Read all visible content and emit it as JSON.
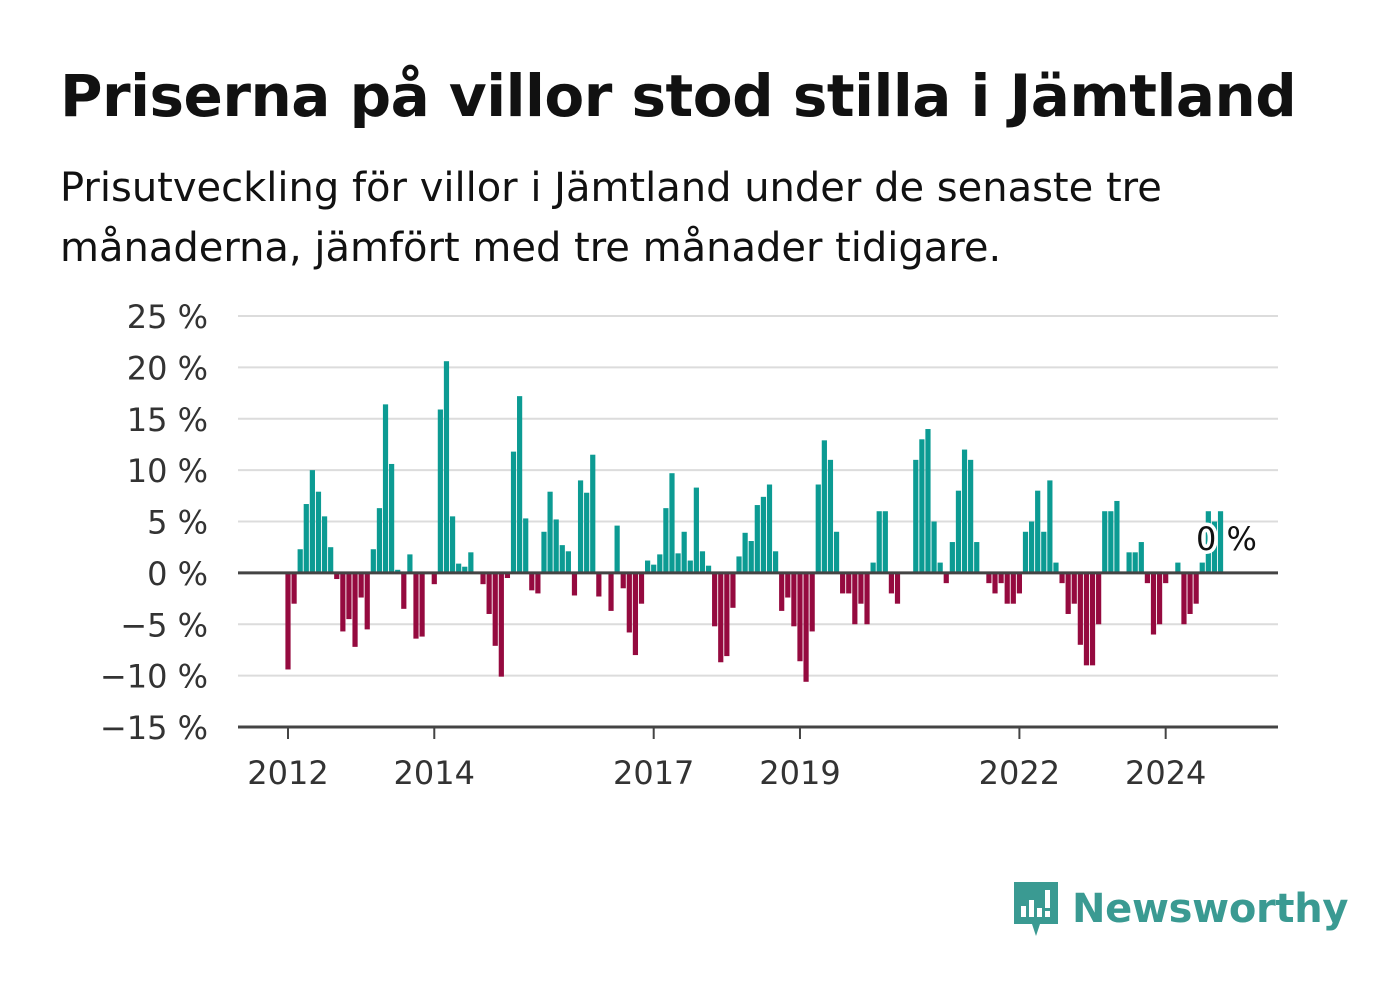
{
  "header": {
    "title": "Priserna på villor stod stilla i Jämtland",
    "subtitle": "Prisutveckling för villor i Jämtland under de senaste tre månaderna, jämfört med tre månader tidigare."
  },
  "brand": {
    "name": "Newsworthy",
    "icon": "newsworthy-logo-icon",
    "color": "#3a9a92"
  },
  "colors": {
    "positive": "#0c9b93",
    "negative": "#950a3f",
    "grid": "#dcdcdc",
    "axis": "#444444"
  },
  "chart_data": {
    "type": "bar",
    "ylim": [
      -15,
      25
    ],
    "y_ticks": [
      25,
      20,
      15,
      10,
      5,
      0,
      -5,
      -10,
      -15
    ],
    "y_tick_labels": [
      "25 %",
      "20 %",
      "15 %",
      "10 %",
      "5 %",
      "0 %",
      "−5 %",
      "−10 %",
      "−15 %"
    ],
    "x_tick_labels": [
      "2012",
      "2014",
      "2017",
      "2019",
      "2022",
      "2024"
    ],
    "x_tick_years": [
      2012,
      2014,
      2017,
      2019,
      2022,
      2024
    ],
    "start_year": 2012,
    "annotation": "0 %",
    "values": [
      -9.4,
      -3.0,
      2.3,
      6.7,
      10.0,
      7.9,
      5.5,
      2.5,
      -0.6,
      -5.7,
      -4.5,
      -7.2,
      -2.4,
      -5.5,
      2.3,
      6.3,
      16.4,
      10.6,
      0.3,
      -3.5,
      1.8,
      -6.4,
      -6.2,
      0.0,
      -1.1,
      15.9,
      20.6,
      5.5,
      0.9,
      0.6,
      2.0,
      0.0,
      -1.1,
      -4.0,
      -7.1,
      -10.1,
      -0.5,
      11.8,
      17.2,
      5.3,
      -1.7,
      -2.0,
      4.0,
      7.9,
      5.2,
      2.7,
      2.1,
      -2.2,
      9.0,
      7.8,
      11.5,
      -2.3,
      0.0,
      -3.7,
      4.6,
      -1.5,
      -5.8,
      -8.0,
      -3.0,
      1.2,
      0.8,
      1.8,
      6.3,
      9.7,
      1.9,
      4.0,
      1.2,
      8.3,
      2.1,
      0.7,
      -5.2,
      -8.7,
      -8.1,
      -3.4,
      1.6,
      3.9,
      3.1,
      6.6,
      7.4,
      8.6,
      2.1,
      -3.7,
      -2.4,
      -5.2,
      -8.6,
      -10.6,
      -5.7,
      8.6,
      12.9,
      11.0,
      4.0,
      -2.0,
      -2.0,
      -5.0,
      -3.0,
      -5.0,
      1.0,
      6.0,
      6.0,
      -2.0,
      -3.0,
      0.0,
      0.0,
      11.0,
      13.0,
      14.0,
      5.0,
      1.0,
      -1.0,
      3.0,
      8.0,
      12.0,
      11.0,
      3.0,
      0.0,
      -1.0,
      -2.0,
      -1.0,
      -3.0,
      -3.0,
      -2.0,
      4.0,
      5.0,
      8.0,
      4.0,
      9.0,
      1.0,
      -1.0,
      -4.0,
      -3.0,
      -7.0,
      -9.0,
      -9.0,
      -5.0,
      6.0,
      6.0,
      7.0,
      0.0,
      2.0,
      2.0,
      3.0,
      -1.0,
      -6.0,
      -5.0,
      -1.0,
      0.0,
      1.0,
      -5.0,
      -4.0,
      -3.0,
      1.0,
      6.0,
      5.0,
      6.0
    ]
  }
}
